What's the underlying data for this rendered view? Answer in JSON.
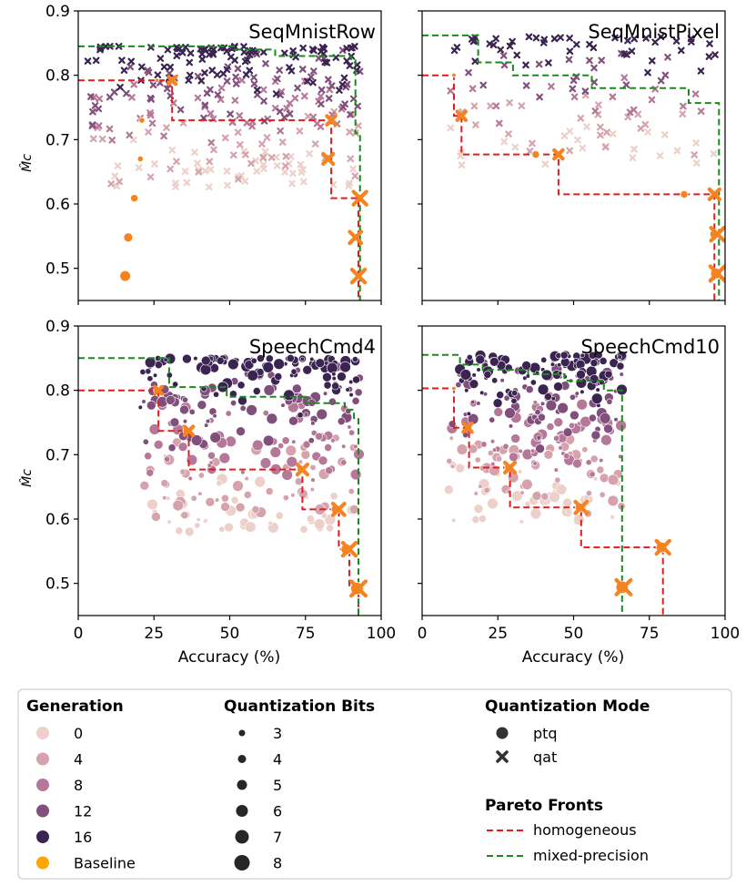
{
  "figure": {
    "ytick_labels": [
      "0.9",
      "0.8",
      "0.7",
      "0.6",
      "0.5"
    ],
    "ylabel": "M̂c",
    "xlabel": "Accuracy (%)"
  },
  "legend": {
    "generation": {
      "title": "Generation",
      "items": [
        {
          "label": "0",
          "color": "#ecd0c9"
        },
        {
          "label": "4",
          "color": "#d6a3ac"
        },
        {
          "label": "8",
          "color": "#b67898"
        },
        {
          "label": "12",
          "color": "#814f7c"
        },
        {
          "label": "16",
          "color": "#3b2452"
        },
        {
          "label": "Baseline",
          "color": "#ffa500"
        }
      ]
    },
    "bits": {
      "title": "Quantization Bits",
      "items": [
        {
          "label": "3",
          "r": 3.5
        },
        {
          "label": "4",
          "r": 4.5
        },
        {
          "label": "5",
          "r": 5.5
        },
        {
          "label": "6",
          "r": 6.5
        },
        {
          "label": "7",
          "r": 7.5
        },
        {
          "label": "8",
          "r": 8.5
        }
      ]
    },
    "mode": {
      "title": "Quantization Mode",
      "items": [
        {
          "label": "ptq",
          "marker": "circle"
        },
        {
          "label": "qat",
          "marker": "x"
        }
      ]
    },
    "pareto": {
      "title": "Pareto Fronts",
      "items": [
        {
          "label": "homogeneous",
          "color": "#e41a1c"
        },
        {
          "label": "mixed-precision",
          "color": "#1a8a1a"
        }
      ]
    }
  },
  "chart_data": [
    {
      "type": "scatter",
      "title": "SeqMnistRow",
      "xlabel": "",
      "ylabel": "M̂c",
      "xlim": [
        0,
        100
      ],
      "ylim": [
        0.45,
        0.9
      ],
      "xticks": [
        0,
        25,
        50,
        75,
        100
      ],
      "xtick_labels": [
        "0",
        "25",
        "50",
        "75",
        "100"
      ],
      "yticks": [
        0.5,
        0.6,
        0.7,
        0.8,
        0.9
      ],
      "cloud": {
        "mode": "qat",
        "n": 300,
        "xrange": [
          1,
          93
        ],
        "ytop": 0.845,
        "spread": 0.22,
        "seed": 11
      },
      "baseline_points": [
        {
          "x": 15.5,
          "y": 0.488,
          "mode": "ptq",
          "bits": 7
        },
        {
          "x": 16.5,
          "y": 0.548,
          "mode": "ptq",
          "bits": 6
        },
        {
          "x": 18.5,
          "y": 0.609,
          "mode": "ptq",
          "bits": 5
        },
        {
          "x": 20.5,
          "y": 0.67,
          "mode": "ptq",
          "bits": 4
        },
        {
          "x": 21.0,
          "y": 0.73,
          "mode": "ptq",
          "bits": 4
        },
        {
          "x": 26.0,
          "y": 0.792,
          "mode": "ptq",
          "bits": 3
        },
        {
          "x": 31.0,
          "y": 0.792,
          "mode": "qat",
          "bits": 3
        },
        {
          "x": 82.5,
          "y": 0.67,
          "mode": "qat",
          "bits": 5
        },
        {
          "x": 83.5,
          "y": 0.73,
          "mode": "qat",
          "bits": 4
        },
        {
          "x": 91.5,
          "y": 0.548,
          "mode": "qat",
          "bits": 6
        },
        {
          "x": 92.5,
          "y": 0.488,
          "mode": "qat",
          "bits": 7
        },
        {
          "x": 93.0,
          "y": 0.609,
          "mode": "qat",
          "bits": 7
        }
      ],
      "pareto_homogeneous": [
        [
          0,
          0.792
        ],
        [
          31,
          0.792
        ],
        [
          31,
          0.73
        ],
        [
          83.5,
          0.73
        ],
        [
          83.5,
          0.609
        ],
        [
          92.5,
          0.609
        ],
        [
          92.5,
          0.45
        ]
      ],
      "pareto_mixed": [
        [
          0,
          0.845
        ],
        [
          52,
          0.845
        ],
        [
          52,
          0.84
        ],
        [
          65,
          0.84
        ],
        [
          65,
          0.83
        ],
        [
          90,
          0.83
        ],
        [
          90,
          0.825
        ],
        [
          91.5,
          0.825
        ],
        [
          91.5,
          0.71
        ],
        [
          93,
          0.71
        ],
        [
          93,
          0.45
        ]
      ]
    },
    {
      "type": "scatter",
      "title": "SeqMnistPixel",
      "xlabel": "",
      "ylabel": "",
      "xlim": [
        0,
        100
      ],
      "ylim": [
        0.45,
        0.9
      ],
      "xticks": [
        0,
        25,
        50,
        75,
        100
      ],
      "xtick_labels": [
        "0",
        "25",
        "50",
        "75",
        "100"
      ],
      "yticks": [
        0.5,
        0.6,
        0.7,
        0.8,
        0.9
      ],
      "cloud": {
        "mode": "qat",
        "n": 130,
        "xrange": [
          7,
          97
        ],
        "ytop": 0.86,
        "spread": 0.2,
        "seed": 23
      },
      "baseline_points": [
        {
          "x": 10.5,
          "y": 0.8,
          "mode": "ptq",
          "bits": 3
        },
        {
          "x": 13.0,
          "y": 0.737,
          "mode": "qat",
          "bits": 4
        },
        {
          "x": 37.5,
          "y": 0.677,
          "mode": "ptq",
          "bits": 5
        },
        {
          "x": 45.0,
          "y": 0.677,
          "mode": "qat",
          "bits": 4
        },
        {
          "x": 86.5,
          "y": 0.615,
          "mode": "ptq",
          "bits": 5
        },
        {
          "x": 96.5,
          "y": 0.615,
          "mode": "qat",
          "bits": 5
        },
        {
          "x": 96.5,
          "y": 0.553,
          "mode": "ptq",
          "bits": 6
        },
        {
          "x": 97.5,
          "y": 0.553,
          "mode": "qat",
          "bits": 7
        },
        {
          "x": 97.0,
          "y": 0.492,
          "mode": "ptq",
          "bits": 7
        },
        {
          "x": 97.5,
          "y": 0.492,
          "mode": "qat",
          "bits": 8
        }
      ],
      "pareto_homogeneous": [
        [
          0,
          0.8
        ],
        [
          10.5,
          0.8
        ],
        [
          10.5,
          0.737
        ],
        [
          13,
          0.737
        ],
        [
          13,
          0.677
        ],
        [
          45,
          0.677
        ],
        [
          45,
          0.615
        ],
        [
          96.5,
          0.615
        ],
        [
          96.5,
          0.45
        ]
      ],
      "pareto_mixed": [
        [
          0,
          0.862
        ],
        [
          18.5,
          0.862
        ],
        [
          18.5,
          0.82
        ],
        [
          30,
          0.82
        ],
        [
          30,
          0.8
        ],
        [
          56,
          0.8
        ],
        [
          56,
          0.78
        ],
        [
          88,
          0.78
        ],
        [
          88,
          0.757
        ],
        [
          98,
          0.757
        ],
        [
          98,
          0.45
        ]
      ]
    },
    {
      "type": "scatter",
      "title": "SpeechCmd4",
      "xlabel": "Accuracy (%)",
      "ylabel": "M̂c",
      "xlim": [
        0,
        100
      ],
      "ylim": [
        0.45,
        0.9
      ],
      "xticks": [
        0,
        25,
        50,
        75,
        100
      ],
      "xtick_labels": [
        "0",
        "25",
        "50",
        "75",
        "100"
      ],
      "yticks": [
        0.5,
        0.6,
        0.7,
        0.8,
        0.9
      ],
      "cloud": {
        "mode": "ptq",
        "n": 340,
        "xrange": [
          20,
          93
        ],
        "ytop": 0.85,
        "spread": 0.27,
        "seed": 37
      },
      "baseline_points": [
        {
          "x": 25.5,
          "y": 0.8,
          "mode": "ptq",
          "bits": 3
        },
        {
          "x": 26.5,
          "y": 0.8,
          "mode": "qat",
          "bits": 3
        },
        {
          "x": 35.5,
          "y": 0.737,
          "mode": "ptq",
          "bits": 4
        },
        {
          "x": 36.5,
          "y": 0.737,
          "mode": "qat",
          "bits": 4
        },
        {
          "x": 73.5,
          "y": 0.677,
          "mode": "ptq",
          "bits": 5
        },
        {
          "x": 74.0,
          "y": 0.677,
          "mode": "qat",
          "bits": 5
        },
        {
          "x": 85.0,
          "y": 0.615,
          "mode": "ptq",
          "bits": 6
        },
        {
          "x": 86.0,
          "y": 0.615,
          "mode": "qat",
          "bits": 6
        },
        {
          "x": 88.5,
          "y": 0.553,
          "mode": "ptq",
          "bits": 7
        },
        {
          "x": 89.5,
          "y": 0.553,
          "mode": "qat",
          "bits": 7
        },
        {
          "x": 92.0,
          "y": 0.492,
          "mode": "ptq",
          "bits": 8
        },
        {
          "x": 92.5,
          "y": 0.492,
          "mode": "qat",
          "bits": 8
        }
      ],
      "pareto_homogeneous": [
        [
          0,
          0.8
        ],
        [
          26.5,
          0.8
        ],
        [
          26.5,
          0.737
        ],
        [
          36.5,
          0.737
        ],
        [
          36.5,
          0.677
        ],
        [
          74,
          0.677
        ],
        [
          74,
          0.615
        ],
        [
          86,
          0.615
        ],
        [
          86,
          0.553
        ],
        [
          89.5,
          0.553
        ],
        [
          89.5,
          0.492
        ],
        [
          92.5,
          0.492
        ],
        [
          92.5,
          0.45
        ]
      ],
      "pareto_mixed": [
        [
          0,
          0.85
        ],
        [
          30,
          0.85
        ],
        [
          30,
          0.805
        ],
        [
          49,
          0.805
        ],
        [
          49,
          0.79
        ],
        [
          75,
          0.79
        ],
        [
          75,
          0.78
        ],
        [
          88,
          0.78
        ],
        [
          88,
          0.77
        ],
        [
          91,
          0.77
        ],
        [
          91,
          0.757
        ],
        [
          92.5,
          0.757
        ],
        [
          92.5,
          0.45
        ]
      ]
    },
    {
      "type": "scatter",
      "title": "SpeechCmd10",
      "xlabel": "Accuracy (%)",
      "ylabel": "",
      "xlim": [
        0,
        100
      ],
      "ylim": [
        0.45,
        0.9
      ],
      "xticks": [
        0,
        25,
        50,
        75,
        100
      ],
      "xtick_labels": [
        "0",
        "25",
        "50",
        "75",
        "100"
      ],
      "yticks": [
        0.5,
        0.6,
        0.7,
        0.8,
        0.9
      ],
      "cloud": {
        "mode": "ptq",
        "n": 320,
        "xrange": [
          8,
          66
        ],
        "ytop": 0.855,
        "spread": 0.26,
        "seed": 53
      },
      "baseline_points": [
        {
          "x": 10.5,
          "y": 0.803,
          "mode": "ptq",
          "bits": 3
        },
        {
          "x": 15.5,
          "y": 0.742,
          "mode": "ptq",
          "bits": 4
        },
        {
          "x": 15.0,
          "y": 0.742,
          "mode": "qat",
          "bits": 4
        },
        {
          "x": 28.5,
          "y": 0.68,
          "mode": "ptq",
          "bits": 5
        },
        {
          "x": 29.0,
          "y": 0.68,
          "mode": "qat",
          "bits": 5
        },
        {
          "x": 52.0,
          "y": 0.618,
          "mode": "ptq",
          "bits": 6
        },
        {
          "x": 52.5,
          "y": 0.618,
          "mode": "qat",
          "bits": 6
        },
        {
          "x": 79.0,
          "y": 0.556,
          "mode": "ptq",
          "bits": 7
        },
        {
          "x": 79.5,
          "y": 0.556,
          "mode": "qat",
          "bits": 7
        },
        {
          "x": 66.0,
          "y": 0.494,
          "mode": "ptq",
          "bits": 8
        },
        {
          "x": 66.5,
          "y": 0.494,
          "mode": "qat",
          "bits": 8
        }
      ],
      "pareto_homogeneous": [
        [
          0,
          0.803
        ],
        [
          10.5,
          0.803
        ],
        [
          10.5,
          0.742
        ],
        [
          15.5,
          0.742
        ],
        [
          15.5,
          0.68
        ],
        [
          29,
          0.68
        ],
        [
          29,
          0.618
        ],
        [
          52.5,
          0.618
        ],
        [
          52.5,
          0.556
        ],
        [
          79.5,
          0.556
        ],
        [
          79.5,
          0.45
        ]
      ],
      "pareto_mixed": [
        [
          0,
          0.855
        ],
        [
          12.5,
          0.855
        ],
        [
          12.5,
          0.84
        ],
        [
          20,
          0.84
        ],
        [
          20,
          0.832
        ],
        [
          35,
          0.832
        ],
        [
          35,
          0.825
        ],
        [
          47,
          0.825
        ],
        [
          47,
          0.815
        ],
        [
          60,
          0.815
        ],
        [
          60,
          0.8
        ],
        [
          66,
          0.8
        ],
        [
          66,
          0.45
        ]
      ]
    }
  ]
}
